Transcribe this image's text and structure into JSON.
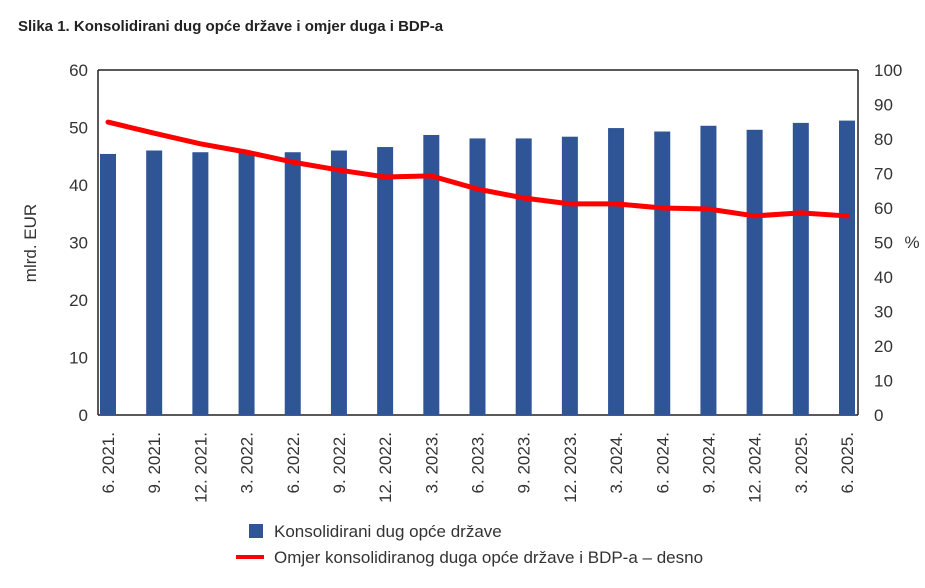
{
  "chart_data": {
    "type": "bar+line",
    "title": "Slika 1. Konsolidirani dug opće države i omjer duga i BDP-a",
    "categories": [
      "6. 2021.",
      "9. 2021.",
      "12. 2021.",
      "3. 2022.",
      "6. 2022.",
      "9. 2022.",
      "12. 2022.",
      "3. 2023.",
      "6. 2023.",
      "9. 2023.",
      "12. 2023.",
      "3. 2024.",
      "6. 2024.",
      "9. 2024.",
      "12. 2024.",
      "3. 2025.",
      "6. 2025."
    ],
    "ylabel_left": "mlrd. EUR",
    "ylabel_right": "%",
    "ylim_left": [
      0,
      60
    ],
    "ylim_right": [
      0,
      100
    ],
    "yticks_left": [
      0,
      10,
      20,
      30,
      40,
      50,
      60
    ],
    "yticks_right": [
      0,
      10,
      20,
      30,
      40,
      50,
      60,
      70,
      80,
      90,
      100
    ],
    "series": [
      {
        "name": "Konsolidirani dug opće države",
        "type": "bar",
        "axis": "left",
        "color": "#2f5597",
        "values": [
          45.4,
          46.0,
          45.7,
          45.8,
          45.7,
          46.0,
          46.6,
          48.7,
          48.1,
          48.1,
          48.4,
          49.9,
          49.3,
          50.3,
          49.6,
          50.8,
          51.2
        ]
      },
      {
        "name": "Omjer konsolidiranog duga opće države i BDP-a – desno",
        "type": "line",
        "axis": "right",
        "color": "#ff0000",
        "values": [
          84.9,
          81.7,
          78.6,
          76.2,
          73.3,
          71.0,
          69.0,
          69.3,
          65.5,
          62.9,
          61.2,
          61.2,
          60.0,
          59.7,
          57.7,
          58.6,
          57.7
        ]
      }
    ],
    "legend_position": "bottom"
  }
}
